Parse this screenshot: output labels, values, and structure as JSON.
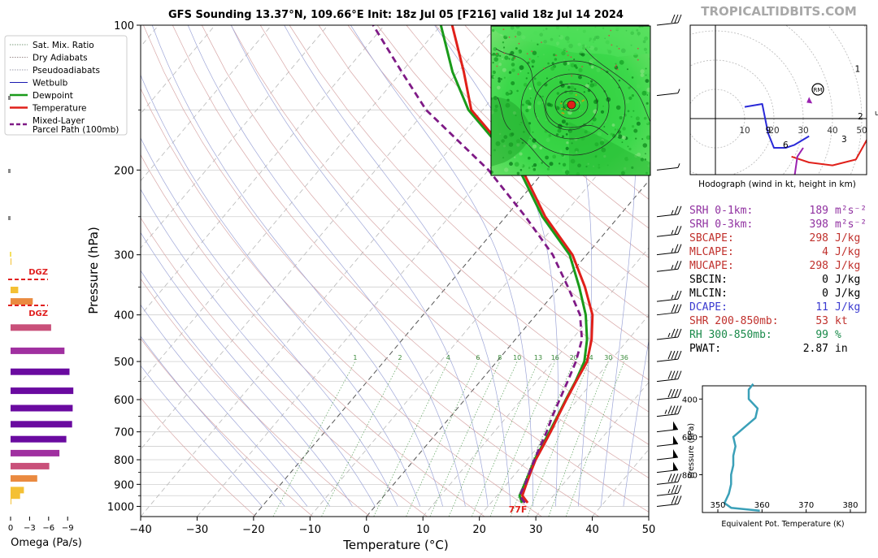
{
  "title": "GFS Sounding 13.37°N, 109.66°E Init: 18z Jul 05 [F216] valid 18z Jul 14 2024",
  "brand": "TROPICALTIDBITS.COM",
  "colors": {
    "temperature": "#e0201a",
    "dewpoint": "#1a9a1a",
    "parcel": "#7f1a86",
    "wetbulb": "#1a1ab0",
    "hodo_red": "#e0201a",
    "hodo_green": "#1a9a1a",
    "hodo_blue": "#2a2ad8",
    "hodo_purple": "#9a22b0",
    "theta_e": "#3aa0b8",
    "dgz": "#e02020",
    "sbcape": "#c0302c",
    "srh": "#9030a0",
    "dcape": "#3a3ad0",
    "rh": "#1a8a4a"
  },
  "legend": {
    "items": [
      {
        "label": "Sat. Mix. Ratio",
        "style": "dotted",
        "color": "#7a9a7a"
      },
      {
        "label": "Dry Adiabats",
        "style": "dotted",
        "color": "#9a8a8a"
      },
      {
        "label": "Pseudoadiabats",
        "style": "dotted",
        "color": "#9a9aaa"
      },
      {
        "label": "Wetbulb",
        "style": "solid",
        "color": "#1a1ab0"
      },
      {
        "label": "Dewpoint",
        "style": "solid-thick",
        "color": "#1a9a1a"
      },
      {
        "label": "Temperature",
        "style": "solid-thick",
        "color": "#e0201a"
      },
      {
        "label": "Mixed-Layer\nParcel Path (100mb)",
        "style": "dashed",
        "color": "#7f1a86"
      }
    ]
  },
  "skewt": {
    "xlabel": "Temperature (°C)",
    "ylabel": "Pressure (hPa)",
    "xlim": [
      -40,
      50
    ],
    "ylim": [
      1050,
      100
    ],
    "x_ticks": [
      -40,
      -30,
      -20,
      -10,
      0,
      10,
      20,
      30,
      40,
      50
    ],
    "p_tick_labels": [
      100,
      200,
      300,
      400,
      500,
      600,
      700,
      800,
      900,
      1000
    ],
    "mixing_ratio_labels": [
      "1",
      "2",
      "4",
      "6",
      "8",
      "10",
      "13",
      "16",
      "20",
      "24",
      "30",
      "36"
    ],
    "surface_temp_label": "77F"
  },
  "omega": {
    "xlabel": "Omega (Pa/s)",
    "x_ticks": [
      "0",
      "−3",
      "−6",
      "−9"
    ],
    "dgz_label": "DGZ"
  },
  "hodograph": {
    "caption": "Hodograph (wind in kt, height in km)",
    "ring_labels": [
      "10",
      "20",
      "30",
      "40",
      "50"
    ],
    "height_labels": [
      "1",
      "2",
      "3",
      "6",
      "9"
    ],
    "rm_label": "RM"
  },
  "stats": [
    {
      "label": "SRH 0-1km:",
      "value": "189",
      "unit": "m²s⁻²",
      "color": "#9030a0"
    },
    {
      "label": "SRH 0-3km:",
      "value": "398",
      "unit": "m²s⁻²",
      "color": "#9030a0"
    },
    {
      "label": "SBCAPE:",
      "value": "298",
      "unit": "J/kg",
      "color": "#c0302c"
    },
    {
      "label": "MLCAPE:",
      "value": "4",
      "unit": "J/kg",
      "color": "#c0302c"
    },
    {
      "label": "MUCAPE:",
      "value": "298",
      "unit": "J/kg",
      "color": "#c0302c"
    },
    {
      "label": "SBCIN:",
      "value": "0",
      "unit": "J/kg",
      "color": "#000000"
    },
    {
      "label": "MLCIN:",
      "value": "0",
      "unit": "J/kg",
      "color": "#000000"
    },
    {
      "label": "DCAPE:",
      "value": "11",
      "unit": "J/kg",
      "color": "#3a3ad0"
    },
    {
      "label": "SHR 200-850mb:",
      "value": "53",
      "unit": "kt",
      "color": "#c0302c"
    },
    {
      "label": "RH 300-850mb:",
      "value": "99",
      "unit": "%",
      "color": "#1a8a4a"
    },
    {
      "label": "PWAT:",
      "value": "2.87",
      "unit": "in",
      "color": "#000000"
    }
  ],
  "theta_e_panel": {
    "xlabel": "Equivalent Pot. Temperature (K)",
    "ylabel": "Pressure (hPa)",
    "x_ticks": [
      350,
      360,
      370,
      380
    ],
    "y_ticks": [
      400,
      600,
      800
    ]
  },
  "chart_data": [
    {
      "type": "line",
      "name": "skew-t",
      "x_unit": "°C",
      "y_unit": "hPa",
      "y_scale": "log",
      "xlim": [
        -40,
        50
      ],
      "ylim": [
        1050,
        100
      ],
      "grid": true,
      "series": [
        {
          "name": "Temperature",
          "p": [
            983,
            950,
            900,
            850,
            800,
            750,
            700,
            650,
            600,
            550,
            500,
            450,
            400,
            350,
            300,
            250,
            200,
            150,
            125,
            100
          ],
          "t": [
            26.5,
            24.5,
            23.5,
            22.5,
            21.5,
            20.8,
            20.0,
            19.0,
            18.0,
            17.0,
            16.0,
            13.5,
            10.0,
            4.5,
            -2.5,
            -13.0,
            -24.0,
            -42.0,
            -49.0,
            -58.0
          ]
        },
        {
          "name": "Dewpoint",
          "p": [
            983,
            950,
            900,
            850,
            800,
            750,
            700,
            650,
            600,
            550,
            500,
            450,
            400,
            350,
            300,
            250,
            200,
            150,
            125,
            100
          ],
          "t": [
            25.5,
            24.0,
            23.2,
            22.3,
            21.3,
            20.6,
            19.8,
            18.9,
            17.9,
            16.9,
            15.5,
            12.7,
            8.8,
            3.5,
            -3.0,
            -13.5,
            -24.5,
            -42.5,
            -51.0,
            -60.0
          ]
        },
        {
          "name": "Mixed-Layer Parcel Path (100mb)",
          "p": [
            983,
            950,
            900,
            850,
            800,
            750,
            700,
            650,
            600,
            550,
            500,
            450,
            400,
            350,
            300,
            250,
            200,
            150,
            125,
            100
          ],
          "t": [
            26.0,
            24.0,
            23.3,
            22.3,
            21.3,
            20.3,
            19.3,
            18.0,
            16.8,
            15.5,
            14.0,
            11.8,
            7.8,
            1.5,
            -6.0,
            -16.5,
            -30.0,
            -50.0,
            -60.0,
            -72.0
          ]
        }
      ]
    },
    {
      "type": "bar",
      "name": "omega",
      "x_unit": "Pa/s",
      "levels_hPa": [
        975,
        950,
        925,
        875,
        825,
        775,
        725,
        675,
        625,
        575,
        525,
        475,
        425,
        375,
        355,
        310
      ],
      "values": [
        -0.1,
        -1.5,
        -2.1,
        -4.2,
        -6.1,
        -7.7,
        -8.8,
        -9.7,
        -9.8,
        -9.9,
        -9.3,
        -8.5,
        -6.4,
        -3.5,
        -1.2,
        -0.05
      ]
    },
    {
      "type": "line",
      "name": "hodograph",
      "unit": "kt",
      "series": [
        {
          "name": "0-1km",
          "u": [
            26,
            32,
            40,
            48,
            53,
            57
          ],
          "v": [
            -13,
            -15,
            -16,
            -14,
            -5,
            3
          ]
        },
        {
          "name": "1-3km",
          "u": [
            57,
            60,
            60,
            57,
            52,
            46,
            39
          ],
          "v": [
            3,
            12,
            28,
            42,
            52,
            55,
            45
          ]
        },
        {
          "name": "3-6km",
          "u": [
            26,
            35,
            42,
            46,
            49
          ],
          "v": [
            -27,
            -27,
            -26,
            -20,
            -20
          ]
        },
        {
          "name": "6-9km",
          "u": [
            26,
            28,
            30
          ],
          "v": [
            -27,
            -13,
            -10
          ]
        },
        {
          "name": "9km+",
          "u": [
            10,
            16,
            18,
            20,
            24,
            27,
            32
          ],
          "v": [
            4,
            5,
            -5,
            -10,
            -10,
            -9,
            -6
          ]
        }
      ],
      "rm": {
        "u": 35,
        "v": 10
      }
    },
    {
      "type": "line",
      "name": "equivalent potential temperature",
      "x_unit": "K",
      "y_unit": "hPa",
      "p": [
        990,
        975,
        950,
        900,
        850,
        800,
        750,
        700,
        650,
        600,
        550,
        500,
        450,
        400,
        350,
        320
      ],
      "theta_e": [
        359.5,
        353,
        351.5,
        352.5,
        353,
        353,
        353.5,
        353.5,
        354,
        353.5,
        356,
        358.5,
        359,
        357,
        357,
        358
      ]
    }
  ]
}
